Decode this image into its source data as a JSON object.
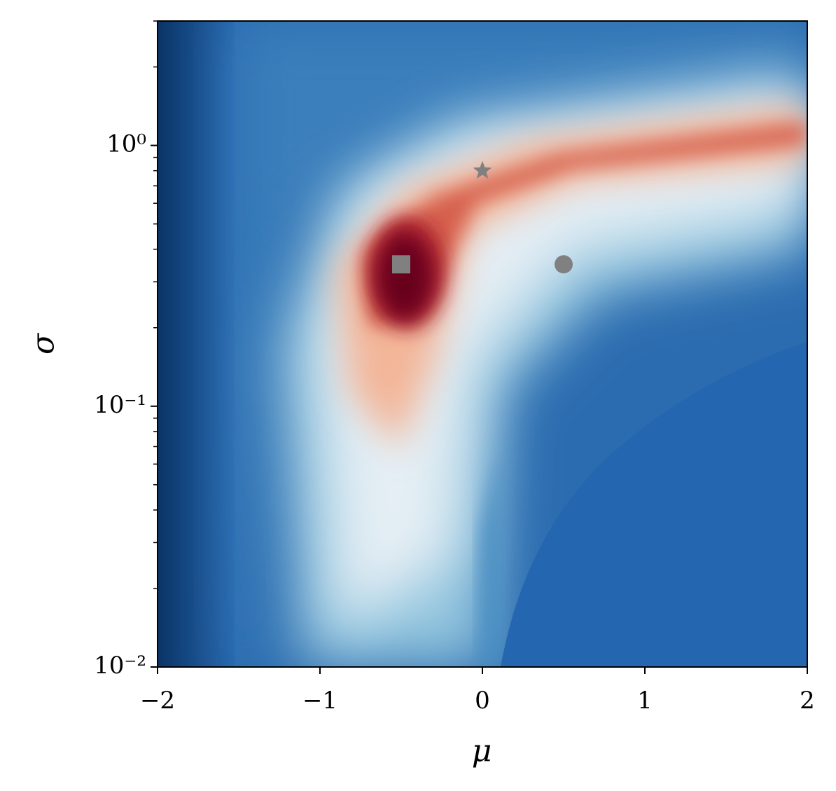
{
  "chart_data": {
    "type": "scatter",
    "x_label": "μ",
    "y_label": "σ",
    "x": [
      -0.5,
      0,
      0.5
    ],
    "values": [
      0.35,
      0.8,
      0.35
    ],
    "markers": [
      "square",
      "star",
      "circle"
    ],
    "color": "#808080",
    "xlim": [
      -2,
      2
    ],
    "xticks": [
      {
        "value": -2,
        "label": "−2"
      },
      {
        "value": -1,
        "label": "−1"
      },
      0,
      1,
      2
    ],
    "ylim": [
      0.01,
      3
    ],
    "log_y": true,
    "yticks": [
      {
        "value": 0.01,
        "label": "10⁻²"
      },
      {
        "value": 0.1,
        "label": "10⁻¹"
      },
      {
        "value": 1,
        "label": "10⁰"
      }
    ],
    "yminorticks": [
      0.02,
      0.03,
      0.04,
      0.05,
      0.06,
      0.07,
      0.08,
      0.09,
      0.2,
      0.3,
      0.4,
      0.5,
      0.6,
      0.7,
      0.8,
      0.9,
      2,
      3
    ],
    "colormap": [
      "#053061",
      "#2166ac",
      "#4393c3",
      "#92c5de",
      "#d1e5f0",
      "#f7f7f7",
      "#fddbc7",
      "#f4a582",
      "#d6604d",
      "#b2182b",
      "#67001f"
    ]
  }
}
